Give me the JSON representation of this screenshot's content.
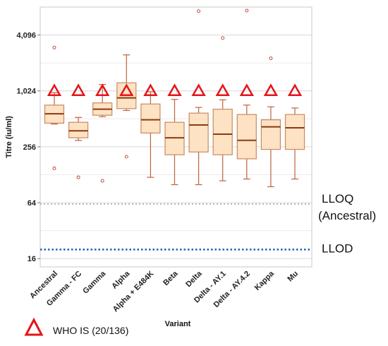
{
  "chart_data": {
    "type": "boxplot",
    "ylabel": "Titre (iu/ml)",
    "xlabel": "Variant",
    "yscale": "log2",
    "ylim": [
      13,
      8192
    ],
    "y_ticks": [
      16,
      64,
      256,
      1024,
      4096
    ],
    "y_tick_labels": [
      "16",
      "64",
      "256",
      "1,024",
      "4,096"
    ],
    "grid": "horizontal",
    "categories": [
      "Ancestral",
      "Gamma - FC",
      "Gamma",
      "Alpha",
      "Alpha + E484K",
      "Beta",
      "Delta",
      "Delta - AY.1",
      "Delta - AY.4.2",
      "Kappa",
      "Mu"
    ],
    "boxes": [
      {
        "min": 450,
        "q1": 460,
        "median": 580,
        "q3": 720,
        "max": 980,
        "outliers": [
          150,
          3000
        ]
      },
      {
        "min": 300,
        "q1": 320,
        "median": 380,
        "q3": 470,
        "max": 530,
        "outliers": [
          120
        ]
      },
      {
        "min": 540,
        "q1": 560,
        "median": 650,
        "q3": 760,
        "max": 1200,
        "outliers": [
          110
        ]
      },
      {
        "min": 630,
        "q1": 660,
        "median": 860,
        "q3": 1250,
        "max": 2500,
        "outliers": [
          200
        ]
      },
      {
        "min": 120,
        "q1": 360,
        "median": 500,
        "q3": 740,
        "max": 1000,
        "outliers": []
      },
      {
        "min": 100,
        "q1": 210,
        "median": 320,
        "q3": 470,
        "max": 830,
        "outliers": []
      },
      {
        "min": 100,
        "q1": 225,
        "median": 440,
        "q3": 590,
        "max": 680,
        "outliers": [
          7400
        ]
      },
      {
        "min": 110,
        "q1": 210,
        "median": 350,
        "q3": 650,
        "max": 820,
        "outliers": [
          3800
        ]
      },
      {
        "min": 115,
        "q1": 190,
        "median": 300,
        "q3": 570,
        "max": 720,
        "outliers": [
          7500
        ]
      },
      {
        "min": 95,
        "q1": 240,
        "median": 420,
        "q3": 500,
        "max": 690,
        "outliers": [
          2300
        ]
      },
      {
        "min": 115,
        "q1": 240,
        "median": 410,
        "q3": 570,
        "max": 670,
        "outliers": []
      }
    ],
    "who_is_value": 1024,
    "reference_lines": [
      {
        "label_line1": "LLOQ",
        "label_line2": "(Ancestral)",
        "value": 62,
        "style": "dotted",
        "color": "#9e9e9e"
      },
      {
        "label_line1": "LLOD",
        "label_line2": "",
        "value": 20,
        "style": "dotted",
        "color": "#1f5fbf"
      }
    ],
    "legend": {
      "label": "WHO IS (20/136)",
      "symbol": "open-triangle",
      "color": "#e3151b"
    },
    "colors": {
      "box_fill": "#fde2c4",
      "box_stroke": "#c98a5e",
      "median": "#8b3a0f",
      "whisker": "#c0633a",
      "outlier": "#c0392b",
      "triangle": "#e3151b"
    }
  }
}
